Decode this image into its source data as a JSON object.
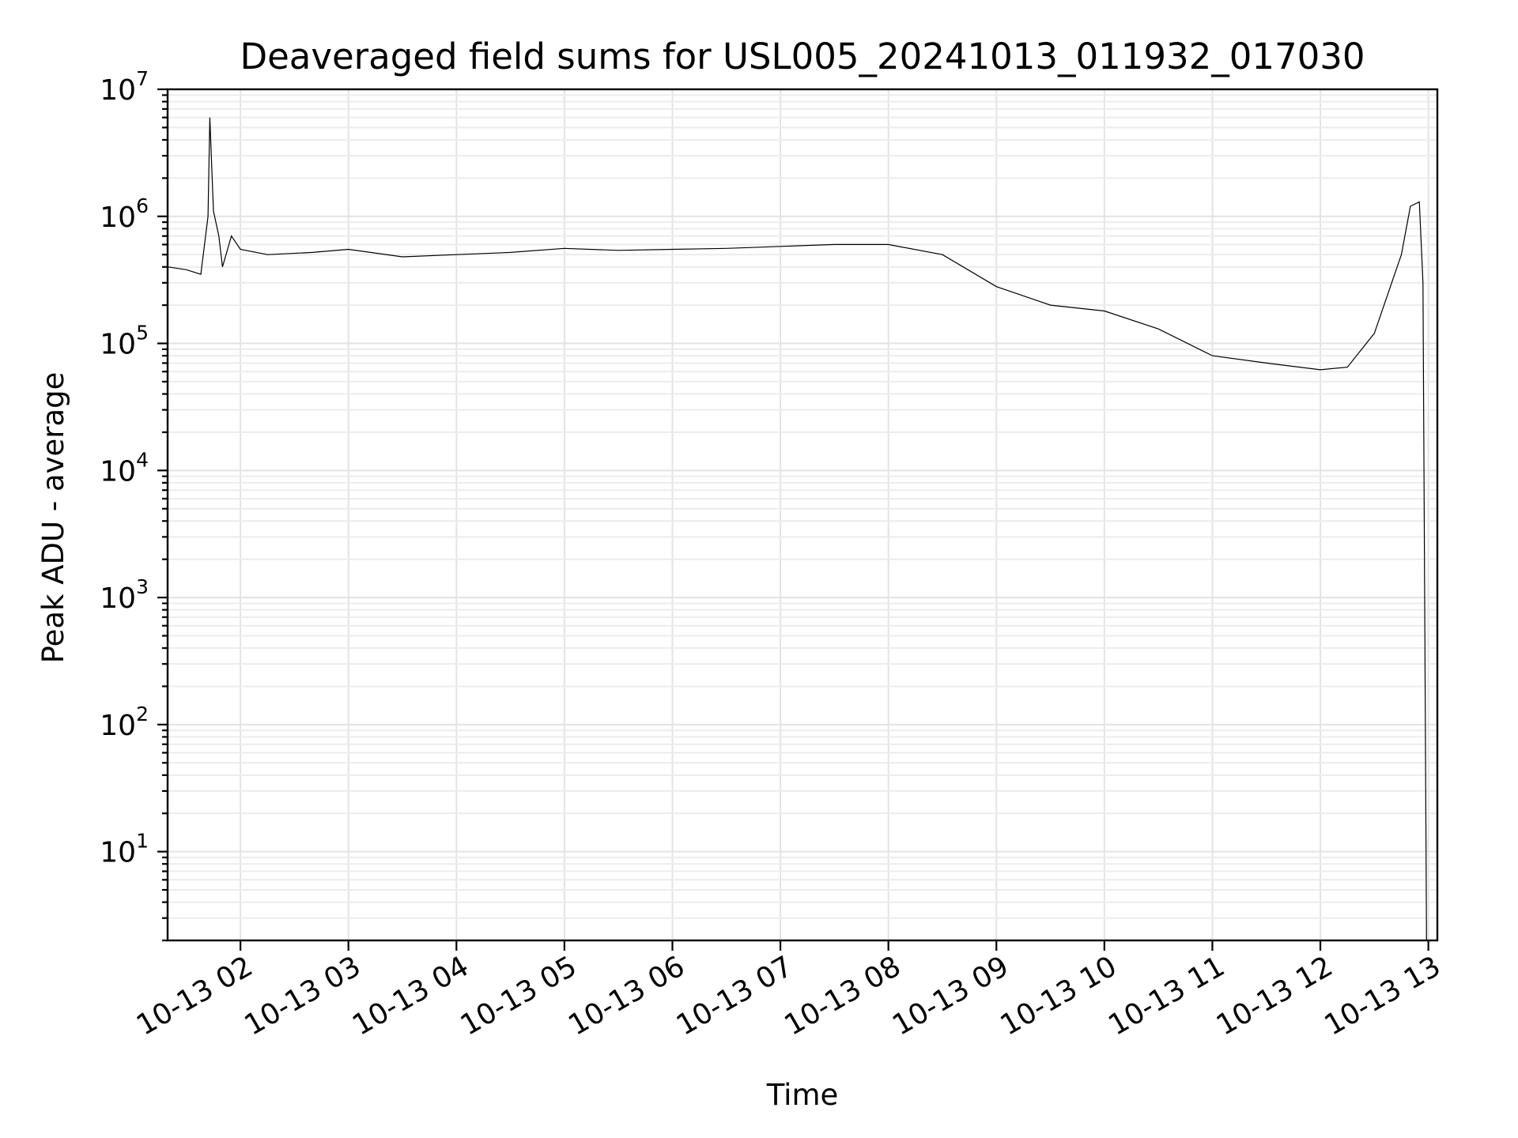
{
  "chart_data": {
    "type": "line",
    "title": "Deaveraged field sums for USL005_20241013_011932_017030",
    "xlabel": "Time",
    "ylabel": "Peak ADU - average",
    "x_scale": "time",
    "y_scale": "log",
    "xlim": [
      "2024-10-13 01:19:32",
      "2024-10-13 13:05:00"
    ],
    "ylim": [
      2,
      10000000
    ],
    "x_ticks": [
      "10-13 02",
      "10-13 03",
      "10-13 04",
      "10-13 05",
      "10-13 06",
      "10-13 07",
      "10-13 08",
      "10-13 09",
      "10-13 10",
      "10-13 11",
      "10-13 12",
      "10-13 13"
    ],
    "y_ticks": [
      {
        "base": "10",
        "exp": "1",
        "value": 10
      },
      {
        "base": "10",
        "exp": "2",
        "value": 100
      },
      {
        "base": "10",
        "exp": "3",
        "value": 1000
      },
      {
        "base": "10",
        "exp": "4",
        "value": 10000
      },
      {
        "base": "10",
        "exp": "5",
        "value": 100000
      },
      {
        "base": "10",
        "exp": "6",
        "value": 1000000
      },
      {
        "base": "10",
        "exp": "7",
        "value": 10000000
      }
    ],
    "grid": true,
    "line_color": "#000000",
    "series": [
      {
        "x": [
          "2024-10-13 01:19:32",
          "2024-10-13 01:30",
          "2024-10-13 01:38",
          "2024-10-13 01:42",
          "2024-10-13 01:43",
          "2024-10-13 01:45",
          "2024-10-13 01:48",
          "2024-10-13 01:50",
          "2024-10-13 01:55",
          "2024-10-13 02:00",
          "2024-10-13 02:15",
          "2024-10-13 02:40",
          "2024-10-13 03:00",
          "2024-10-13 03:30",
          "2024-10-13 04:00",
          "2024-10-13 04:30",
          "2024-10-13 05:00",
          "2024-10-13 05:30",
          "2024-10-13 06:00",
          "2024-10-13 06:30",
          "2024-10-13 07:00",
          "2024-10-13 07:30",
          "2024-10-13 08:00",
          "2024-10-13 08:30",
          "2024-10-13 09:00",
          "2024-10-13 09:30",
          "2024-10-13 10:00",
          "2024-10-13 10:30",
          "2024-10-13 11:00",
          "2024-10-13 11:30",
          "2024-10-13 12:00",
          "2024-10-13 12:15",
          "2024-10-13 12:30",
          "2024-10-13 12:45",
          "2024-10-13 12:50",
          "2024-10-13 12:55",
          "2024-10-13 12:57",
          "2024-10-13 12:59"
        ],
        "y": [
          400000,
          380000,
          350000,
          1000000,
          6000000,
          1100000,
          700000,
          400000,
          700000,
          550000,
          500000,
          520000,
          550000,
          480000,
          500000,
          520000,
          560000,
          540000,
          550000,
          560000,
          580000,
          600000,
          600000,
          500000,
          280000,
          200000,
          180000,
          130000,
          80000,
          70000,
          62000,
          65000,
          120000,
          500000,
          1200000,
          1300000,
          300000,
          2
        ]
      }
    ]
  }
}
